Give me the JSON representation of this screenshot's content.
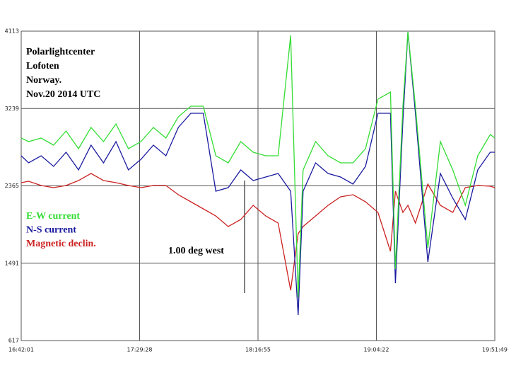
{
  "chart_data": {
    "type": "line",
    "title_lines": [
      "Polarlightcenter",
      "Lofoten",
      "Norway.",
      "Nov.20 2014   UTC"
    ],
    "annotation": "1.00 deg west",
    "x": [
      "16:42:01",
      "16:45",
      "16:50",
      "16:55",
      "17:00",
      "17:05",
      "17:10",
      "17:15",
      "17:20",
      "17:25",
      "17:30",
      "17:35",
      "17:40",
      "17:45",
      "17:50",
      "17:55",
      "18:00",
      "18:05",
      "18:10",
      "18:15",
      "18:20",
      "18:25",
      "18:30",
      "18:33",
      "18:35",
      "18:40",
      "18:45",
      "18:50",
      "18:55",
      "19:00",
      "19:05",
      "19:10",
      "19:12",
      "19:15",
      "19:17",
      "19:20",
      "19:25",
      "19:30",
      "19:35",
      "19:40",
      "19:45",
      "19:50",
      "19:51:49"
    ],
    "xlim": [
      "16:42:01",
      "19:51:49"
    ],
    "xticks": [
      "16:42:01",
      "17:29:28",
      "18:16:55",
      "19:04:22",
      "19:51:49"
    ],
    "ylim": [
      617,
      4113
    ],
    "yticks": [
      617,
      1491,
      2365,
      3239,
      4113
    ],
    "grid": true,
    "series": [
      {
        "name": "E-W current",
        "color": "#33dd33",
        "values": [
          2905,
          2865,
          2905,
          2825,
          2985,
          2785,
          3025,
          2865,
          3065,
          2785,
          2865,
          3025,
          2905,
          3145,
          3265,
          3265,
          2705,
          2625,
          2865,
          2745,
          2705,
          2705,
          4065,
          1105,
          2545,
          2865,
          2705,
          2625,
          2625,
          2785,
          3345,
          3425,
          1425,
          3265,
          4105,
          3265,
          1665,
          2865,
          2545,
          2145,
          2705,
          2945,
          2905
        ]
      },
      {
        "name": "N-S current",
        "color": "#1a1aa0",
        "values": [
          2705,
          2625,
          2705,
          2585,
          2745,
          2545,
          2825,
          2625,
          2865,
          2545,
          2665,
          2825,
          2705,
          3025,
          3185,
          3185,
          2305,
          2345,
          2545,
          2425,
          2465,
          2505,
          2305,
          905,
          2305,
          2625,
          2505,
          2465,
          2385,
          2585,
          3185,
          3185,
          1265,
          3105,
          4105,
          3185,
          1505,
          2505,
          2225,
          1985,
          2545,
          2745,
          2745
        ]
      },
      {
        "name": "Magnetic declin.",
        "color": "#cc2222",
        "values": [
          2401,
          2417,
          2369,
          2345,
          2369,
          2425,
          2505,
          2425,
          2401,
          2369,
          2345,
          2369,
          2369,
          2265,
          2185,
          2105,
          2025,
          1905,
          1985,
          2145,
          2025,
          1945,
          1185,
          1825,
          1905,
          2025,
          2145,
          2241,
          2265,
          2185,
          2065,
          1625,
          2305,
          2065,
          2145,
          1945,
          2385,
          2145,
          2065,
          2345,
          2369,
          2361,
          2345
        ]
      }
    ]
  }
}
